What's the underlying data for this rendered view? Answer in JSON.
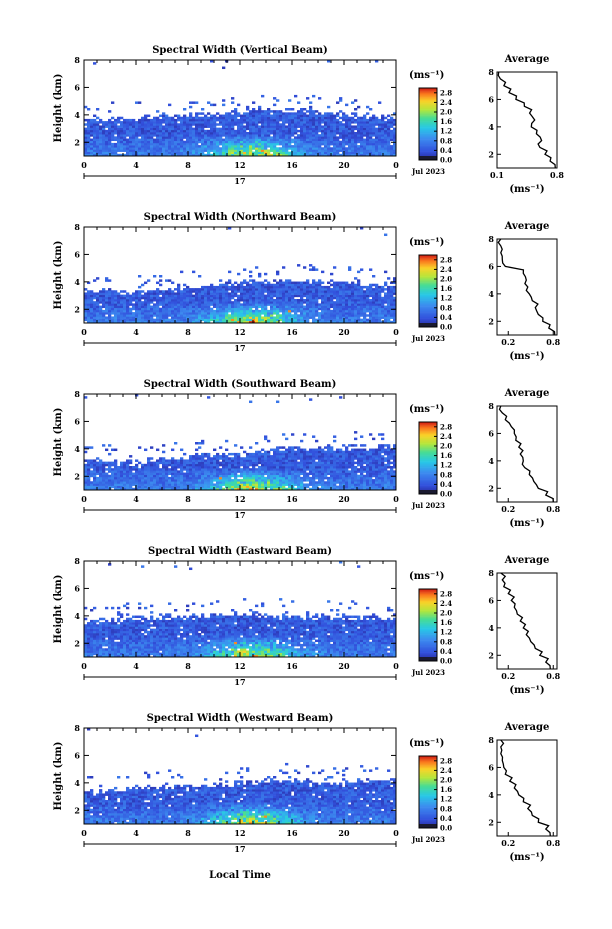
{
  "figure": {
    "xlabel": "Local Time",
    "date_label": "Jul 2023",
    "day_label": "17"
  },
  "chart_data": [
    {
      "type": "heatmap",
      "title": "Spectral Width (Vertical Beam)",
      "ylabel": "Height (km)",
      "x_ticks": [
        "0",
        "4",
        "8",
        "12",
        "16",
        "20",
        "0"
      ],
      "y_ticks": [
        "2",
        "4",
        "6",
        "8"
      ],
      "xlim": [
        0,
        24
      ],
      "ylim": [
        1,
        8
      ],
      "colorbar": {
        "unit": "(ms⁻¹)",
        "ticks": [
          "0.0",
          "0.4",
          "0.8",
          "1.2",
          "1.6",
          "2.0",
          "2.4",
          "2.8"
        ],
        "range": [
          0,
          3.0
        ]
      },
      "average_profile": {
        "title": "Average",
        "xlabel": "(ms⁻¹)",
        "x_ticks": [
          "0.1",
          "0.8"
        ],
        "xlim": [
          0.1,
          0.8
        ],
        "y_ticks": [
          "2",
          "4",
          "6",
          "8"
        ],
        "height": [
          1.0,
          1.5,
          2.0,
          2.5,
          3.0,
          3.5,
          4.0,
          4.5,
          5.0,
          5.5,
          6.0,
          6.5,
          7.0,
          7.5,
          8.0
        ],
        "width": [
          0.78,
          0.72,
          0.66,
          0.6,
          0.62,
          0.56,
          0.5,
          0.54,
          0.48,
          0.42,
          0.32,
          0.24,
          0.18,
          0.14,
          0.12
        ]
      }
    },
    {
      "type": "heatmap",
      "title": "Spectral Width (Northward Beam)",
      "ylabel": "Height (km)",
      "x_ticks": [
        "0",
        "4",
        "8",
        "12",
        "16",
        "20",
        "0"
      ],
      "y_ticks": [
        "2",
        "4",
        "6",
        "8"
      ],
      "xlim": [
        0,
        24
      ],
      "ylim": [
        1,
        8
      ],
      "colorbar": {
        "unit": "(ms⁻¹)",
        "ticks": [
          "0.0",
          "0.4",
          "0.8",
          "1.2",
          "1.6",
          "2.0",
          "2.4",
          "2.8"
        ],
        "range": [
          0,
          3.0
        ]
      },
      "average_profile": {
        "title": "Average",
        "xlabel": "(ms⁻¹)",
        "x_ticks": [
          "0.2",
          "0.8"
        ],
        "xlim": [
          0.05,
          0.85
        ],
        "y_ticks": [
          "2",
          "4",
          "6",
          "8"
        ],
        "height": [
          1.0,
          1.5,
          2.0,
          2.5,
          3.0,
          3.5,
          4.0,
          4.5,
          5.0,
          5.5,
          6.0,
          6.5,
          7.0,
          7.5,
          8.0
        ],
        "width": [
          0.82,
          0.74,
          0.66,
          0.6,
          0.56,
          0.52,
          0.48,
          0.46,
          0.44,
          0.4,
          0.16,
          0.12,
          0.1,
          0.1,
          0.1
        ]
      }
    },
    {
      "type": "heatmap",
      "title": "Spectral Width (Southward Beam)",
      "ylabel": "Height (km)",
      "x_ticks": [
        "0",
        "4",
        "8",
        "12",
        "16",
        "20",
        "0"
      ],
      "y_ticks": [
        "2",
        "4",
        "6",
        "8"
      ],
      "xlim": [
        0,
        24
      ],
      "ylim": [
        1,
        8
      ],
      "colorbar": {
        "unit": "(ms⁻¹)",
        "ticks": [
          "0.0",
          "0.4",
          "0.8",
          "1.2",
          "1.6",
          "2.0",
          "2.4",
          "2.8"
        ],
        "range": [
          0,
          3.0
        ]
      },
      "average_profile": {
        "title": "Average",
        "xlabel": "(ms⁻¹)",
        "x_ticks": [
          "0.2",
          "0.8"
        ],
        "xlim": [
          0.05,
          0.85
        ],
        "y_ticks": [
          "2",
          "4",
          "6",
          "8"
        ],
        "height": [
          1.0,
          1.5,
          2.0,
          2.5,
          3.0,
          3.5,
          4.0,
          4.5,
          5.0,
          5.5,
          6.0,
          6.5,
          7.0,
          7.5,
          8.0
        ],
        "width": [
          0.8,
          0.7,
          0.6,
          0.54,
          0.48,
          0.42,
          0.4,
          0.36,
          0.34,
          0.3,
          0.28,
          0.24,
          0.16,
          0.12,
          0.1
        ]
      }
    },
    {
      "type": "heatmap",
      "title": "Spectral Width (Eastward Beam)",
      "ylabel": "Height (km)",
      "x_ticks": [
        "0",
        "4",
        "8",
        "12",
        "16",
        "20",
        "0"
      ],
      "y_ticks": [
        "2",
        "4",
        "6",
        "8"
      ],
      "xlim": [
        0,
        24
      ],
      "ylim": [
        1,
        8
      ],
      "colorbar": {
        "unit": "(ms⁻¹)",
        "ticks": [
          "0.0",
          "0.4",
          "0.8",
          "1.2",
          "1.6",
          "2.0",
          "2.4",
          "2.8"
        ],
        "range": [
          0,
          3.0
        ]
      },
      "average_profile": {
        "title": "Average",
        "xlabel": "(ms⁻¹)",
        "x_ticks": [
          "0.2",
          "0.8"
        ],
        "xlim": [
          0.05,
          0.85
        ],
        "y_ticks": [
          "2",
          "4",
          "6",
          "8"
        ],
        "height": [
          1.0,
          1.5,
          2.0,
          2.5,
          3.0,
          3.5,
          4.0,
          4.5,
          5.0,
          5.5,
          6.0,
          6.5,
          7.0,
          7.5,
          8.0
        ],
        "width": [
          0.76,
          0.7,
          0.62,
          0.56,
          0.5,
          0.44,
          0.4,
          0.36,
          0.32,
          0.28,
          0.24,
          0.2,
          0.14,
          0.12,
          0.1
        ]
      }
    },
    {
      "type": "heatmap",
      "title": "Spectral Width (Westward Beam)",
      "ylabel": "Height (km)",
      "x_ticks": [
        "0",
        "4",
        "8",
        "12",
        "16",
        "20",
        "0"
      ],
      "y_ticks": [
        "2",
        "4",
        "6",
        "8"
      ],
      "xlim": [
        0,
        24
      ],
      "ylim": [
        1,
        8
      ],
      "colorbar": {
        "unit": "(ms⁻¹)",
        "ticks": [
          "0.0",
          "0.4",
          "0.8",
          "1.2",
          "1.6",
          "2.0",
          "2.4",
          "2.8"
        ],
        "range": [
          0,
          3.0
        ]
      },
      "average_profile": {
        "title": "Average",
        "xlabel": "(ms⁻¹)",
        "x_ticks": [
          "0.2",
          "0.8"
        ],
        "xlim": [
          0.05,
          0.85
        ],
        "y_ticks": [
          "2",
          "4",
          "6",
          "8"
        ],
        "height": [
          1.0,
          1.5,
          2.0,
          2.5,
          3.0,
          3.5,
          4.0,
          4.5,
          5.0,
          5.5,
          6.0,
          6.5,
          7.0,
          7.5,
          8.0
        ],
        "width": [
          0.76,
          0.7,
          0.6,
          0.52,
          0.46,
          0.4,
          0.34,
          0.28,
          0.22,
          0.16,
          0.14,
          0.12,
          0.1,
          0.1,
          0.1
        ]
      }
    }
  ]
}
